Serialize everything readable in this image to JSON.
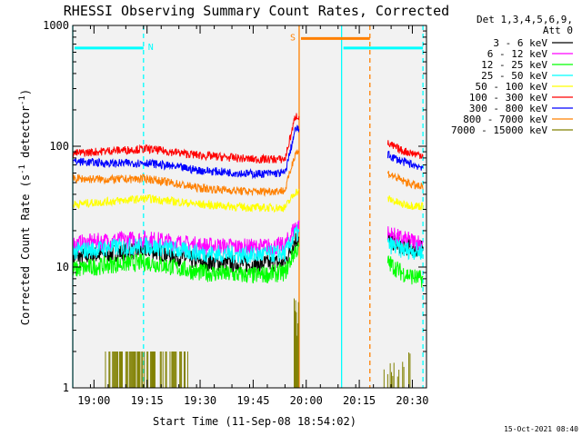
{
  "chart_data": {
    "type": "line",
    "title": "RHESSI Observing Summary Count Rates, Corrected",
    "xlabel": "Start Time (11-Sep-08 18:54:02)",
    "ylabel": "Corrected Count Rate (s⁻¹ detector⁻¹)",
    "ylabel_main": "Corrected Count Rate (s",
    "ylabel_sup1": "-1",
    "ylabel_mid": " detector",
    "ylabel_sup2": "-1",
    "ylabel_end": ")",
    "yscale": "log",
    "ylim": [
      1,
      1000
    ],
    "yticks": [
      {
        "value": 1,
        "label": "1"
      },
      {
        "value": 10,
        "label": "10"
      },
      {
        "value": 100,
        "label": "100"
      },
      {
        "value": 1000,
        "label": "1000"
      }
    ],
    "xlim": [
      "18:54",
      "20:34"
    ],
    "xticks": [
      "19:00",
      "19:15",
      "19:30",
      "19:45",
      "20:00",
      "20:15",
      "20:30"
    ],
    "footer_date": "15-Oct-2021 08:40",
    "legend_position": "right",
    "legend_header": [
      "Det 1,3,4,5,6,9,",
      "Att 0"
    ],
    "series": [
      {
        "name": "3 - 6 keV",
        "color": "#000000",
        "points": [
          [
            "18:54",
            12
          ],
          [
            "19:05",
            13
          ],
          [
            "19:15",
            14
          ],
          [
            "19:30",
            11
          ],
          [
            "19:45",
            10.5
          ],
          [
            "19:54",
            11
          ],
          [
            "19:57",
            17
          ],
          [
            "20:23",
            17
          ],
          [
            "20:27",
            15
          ],
          [
            "20:32",
            14
          ]
        ]
      },
      {
        "name": "6 - 12 keV",
        "color": "#ff00ff",
        "points": [
          [
            "18:54",
            15.5
          ],
          [
            "19:05",
            16.5
          ],
          [
            "19:15",
            17
          ],
          [
            "19:30",
            15
          ],
          [
            "19:45",
            14.5
          ],
          [
            "19:54",
            15
          ],
          [
            "19:57",
            22
          ],
          [
            "20:23",
            19
          ],
          [
            "20:27",
            17
          ],
          [
            "20:32",
            16
          ]
        ]
      },
      {
        "name": "12 - 25 keV",
        "color": "#00ff00",
        "points": [
          [
            "18:54",
            9.5
          ],
          [
            "19:05",
            10.5
          ],
          [
            "19:15",
            11
          ],
          [
            "19:30",
            9
          ],
          [
            "19:45",
            8.5
          ],
          [
            "19:54",
            9
          ],
          [
            "19:57",
            14
          ],
          [
            "20:23",
            11
          ],
          [
            "20:27",
            9
          ],
          [
            "20:32",
            8
          ]
        ]
      },
      {
        "name": "25 - 50 keV",
        "color": "#00ffff",
        "points": [
          [
            "18:54",
            13.5
          ],
          [
            "19:05",
            14.5
          ],
          [
            "19:15",
            15
          ],
          [
            "19:30",
            13
          ],
          [
            "19:45",
            12.5
          ],
          [
            "19:54",
            13
          ],
          [
            "19:57",
            19
          ],
          [
            "20:23",
            15.5
          ],
          [
            "20:27",
            14
          ],
          [
            "20:32",
            13.5
          ]
        ]
      },
      {
        "name": "50 - 100 keV",
        "color": "#ffff00",
        "points": [
          [
            "18:54",
            33
          ],
          [
            "19:05",
            35
          ],
          [
            "19:15",
            37
          ],
          [
            "19:30",
            33
          ],
          [
            "19:45",
            31
          ],
          [
            "19:54",
            31
          ],
          [
            "19:57",
            42
          ],
          [
            "20:23",
            37
          ],
          [
            "20:27",
            33
          ],
          [
            "20:32",
            32
          ]
        ]
      },
      {
        "name": "100 - 300 keV",
        "color": "#ff0000",
        "points": [
          [
            "18:54",
            87
          ],
          [
            "19:05",
            92
          ],
          [
            "19:15",
            95
          ],
          [
            "19:30",
            84
          ],
          [
            "19:45",
            78
          ],
          [
            "19:54",
            78
          ],
          [
            "19:57",
            180
          ],
          [
            "20:23",
            105
          ],
          [
            "20:27",
            92
          ],
          [
            "20:32",
            85
          ]
        ]
      },
      {
        "name": "300 - 800 keV",
        "color": "#0000ff",
        "points": [
          [
            "18:54",
            75
          ],
          [
            "19:05",
            72
          ],
          [
            "19:15",
            73
          ],
          [
            "19:30",
            63
          ],
          [
            "19:45",
            59
          ],
          [
            "19:54",
            60
          ],
          [
            "19:57",
            140
          ],
          [
            "20:23",
            85
          ],
          [
            "20:27",
            75
          ],
          [
            "20:32",
            68
          ]
        ]
      },
      {
        "name": "800 - 7000 keV",
        "color": "#ff8000",
        "points": [
          [
            "18:54",
            54
          ],
          [
            "19:05",
            53
          ],
          [
            "19:15",
            54
          ],
          [
            "19:30",
            45
          ],
          [
            "19:45",
            42
          ],
          [
            "19:54",
            43
          ],
          [
            "19:57",
            90
          ],
          [
            "20:23",
            60
          ],
          [
            "20:27",
            52
          ],
          [
            "20:32",
            46
          ]
        ]
      },
      {
        "name": "7000 - 15000 keV",
        "color": "#808000",
        "points": []
      }
    ],
    "flags": [
      {
        "label": "N",
        "color": "#00ffff",
        "level": 650,
        "start": "18:54",
        "end": "19:14"
      },
      {
        "label": "S",
        "color": "#ff8000",
        "level": 780,
        "start": "19:58",
        "end": "20:18"
      },
      {
        "label": "",
        "color": "#00ffff",
        "level": 650,
        "start": "20:10",
        "end": "20:33"
      }
    ],
    "event_lines": [
      {
        "time": "18:54",
        "color": "#00ffff",
        "style": "solid"
      },
      {
        "time": "19:14",
        "color": "#00ffff",
        "style": "dashed"
      },
      {
        "time": "19:58",
        "color": "#ff8000",
        "style": "solid"
      },
      {
        "time": "20:10",
        "color": "#00ffff",
        "style": "solid"
      },
      {
        "time": "20:18",
        "color": "#ff8000",
        "style": "dashed"
      },
      {
        "time": "20:33",
        "color": "#00ffff",
        "style": "dashed"
      }
    ],
    "data_gap": [
      "19:58",
      "20:23"
    ]
  }
}
